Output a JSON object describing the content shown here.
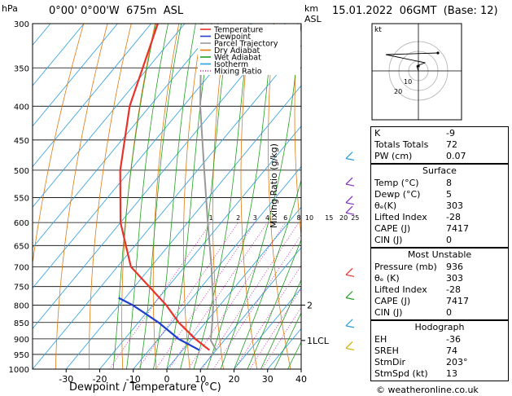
{
  "header": {
    "hpa_label": "hPa",
    "location": "0°00' 0°00'W  675m  ASL",
    "km_label": "km",
    "asl_label": "ASL",
    "datetime": "15.01.2022  06GMT  (Base: 12)"
  },
  "legend": [
    {
      "label": "Temperature",
      "color": "#e8332a",
      "style": "solid"
    },
    {
      "label": "Dewpoint",
      "color": "#1f3fd1",
      "style": "solid"
    },
    {
      "label": "Parcel Trajectory",
      "color": "#999999",
      "style": "solid"
    },
    {
      "label": "Dry Adiabat",
      "color": "#e07a10",
      "style": "solid"
    },
    {
      "label": "Wet Adiabat",
      "color": "#22a022",
      "style": "solid"
    },
    {
      "label": "Isotherm",
      "color": "#2a9de0",
      "style": "solid"
    },
    {
      "label": "Mixing Ratio",
      "color": "#c020a0",
      "style": "dotted"
    }
  ],
  "chart_data": {
    "type": "line",
    "xlabel": "Dewpoint / Temperature (°C)",
    "ylabel": "hPa",
    "x_ticks": [
      -30,
      -20,
      -10,
      0,
      10,
      20,
      30,
      40
    ],
    "pressure_levels": [
      300,
      350,
      400,
      450,
      500,
      550,
      600,
      650,
      700,
      750,
      800,
      850,
      900,
      950,
      1000
    ],
    "xlim": [
      -40,
      40
    ],
    "ylim": [
      1000,
      300
    ],
    "mixing_ratio_label": "Mixing Ratio (g/kg)",
    "mixing_ratio_labels": [
      "1",
      "2",
      "3",
      "4",
      "6",
      "8",
      "10",
      "15",
      "20",
      "25"
    ],
    "mixing_ratio_values": [
      1,
      2,
      3,
      4,
      6,
      8,
      10,
      15,
      20,
      25
    ],
    "km_labels": [
      {
        "p": 800,
        "label": "2"
      },
      {
        "p": 905,
        "label": "1"
      }
    ],
    "lcl": {
      "p": 905,
      "label": "LCL"
    },
    "series": [
      {
        "name": "Temperature",
        "color": "#e8332a",
        "points": [
          {
            "p": 936,
            "t": 8
          },
          {
            "p": 900,
            "t": 1
          },
          {
            "p": 850,
            "t": -8
          },
          {
            "p": 800,
            "t": -16
          },
          {
            "p": 700,
            "t": -36
          },
          {
            "p": 600,
            "t": -50
          },
          {
            "p": 500,
            "t": -63
          },
          {
            "p": 400,
            "t": -76
          },
          {
            "p": 300,
            "t": -88
          }
        ]
      },
      {
        "name": "Dewpoint",
        "color": "#1f3fd1",
        "points": [
          {
            "p": 936,
            "t": 5
          },
          {
            "p": 900,
            "t": -4
          },
          {
            "p": 850,
            "t": -14
          },
          {
            "p": 800,
            "t": -26
          },
          {
            "p": 780,
            "t": -32
          }
        ]
      },
      {
        "name": "Parcel Trajectory",
        "color": "#999999",
        "points": [
          {
            "p": 936,
            "t": 10
          },
          {
            "p": 905,
            "t": 6
          },
          {
            "p": 850,
            "t": 2
          },
          {
            "p": 800,
            "t": -2
          },
          {
            "p": 700,
            "t": -12
          },
          {
            "p": 600,
            "t": -24
          },
          {
            "p": 500,
            "t": -38
          },
          {
            "p": 400,
            "t": -55
          },
          {
            "p": 300,
            "t": -75
          }
        ]
      }
    ]
  },
  "hodograph": {
    "label": "kt",
    "ring_labels": [
      "10",
      "20"
    ]
  },
  "indices": [
    {
      "key": "K",
      "value": "-9"
    },
    {
      "key": "Totals Totals",
      "value": "72"
    },
    {
      "key": "PW (cm)",
      "value": "0.07"
    }
  ],
  "surface": {
    "title": "Surface",
    "rows": [
      {
        "key": "Temp (°C)",
        "value": "8"
      },
      {
        "key": "Dewp (°C)",
        "value": "5"
      },
      {
        "key": "θₑ(K)",
        "value": "303"
      },
      {
        "key": "Lifted Index",
        "value": "-28"
      },
      {
        "key": "CAPE (J)",
        "value": "7417"
      },
      {
        "key": "CIN (J)",
        "value": "0"
      }
    ]
  },
  "most_unstable": {
    "title": "Most Unstable",
    "rows": [
      {
        "key": "Pressure (mb)",
        "value": "936"
      },
      {
        "key": "θₑ (K)",
        "value": "303"
      },
      {
        "key": "Lifted Index",
        "value": "-28"
      },
      {
        "key": "CAPE (J)",
        "value": "7417"
      },
      {
        "key": "CIN (J)",
        "value": "0"
      }
    ]
  },
  "hodograph_table": {
    "title": "Hodograph",
    "rows": [
      {
        "key": "EH",
        "value": "-36"
      },
      {
        "key": "SREH",
        "value": "74"
      },
      {
        "key": "StmDir",
        "value": "203°"
      },
      {
        "key": "StmSpd (kt)",
        "value": "13"
      }
    ]
  },
  "footer": {
    "credit": "© weatheronline.co.uk"
  },
  "colors": {
    "isotherm": "#2a9de0",
    "dry_adiabat": "#e07a10",
    "wet_adiabat": "#22a022",
    "mixing": "#c020a0",
    "temperature": "#e8332a",
    "dewpoint": "#1f3fd1",
    "parcel": "#999999"
  }
}
